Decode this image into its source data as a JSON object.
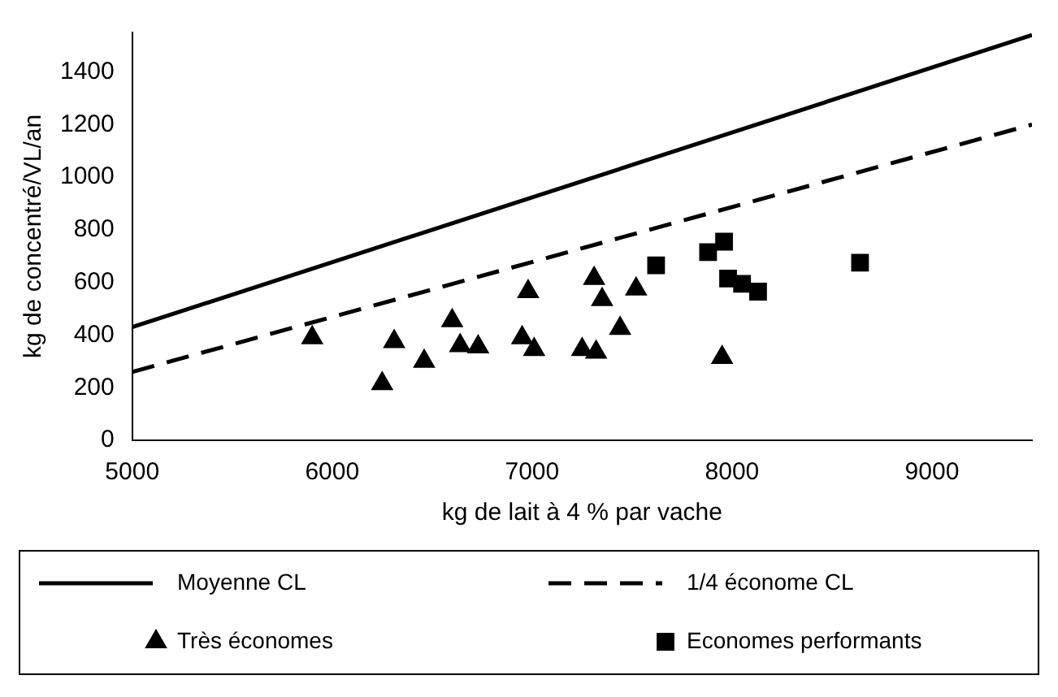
{
  "chart_data": {
    "type": "scatter",
    "xlabel": "kg de lait à 4 % par vache",
    "ylabel": "kg de concentré/VL/an",
    "xlim": [
      5000,
      9500
    ],
    "xticks": [
      5000,
      6000,
      7000,
      8000,
      9000
    ],
    "ylim": [
      0,
      1550
    ],
    "yticks": [
      0,
      200,
      400,
      600,
      800,
      1000,
      1200,
      1400
    ],
    "grid": false,
    "legend": "bottom",
    "series": [
      {
        "name": "Moyenne CL",
        "type": "line",
        "color": "#000000",
        "line_style": "solid",
        "marker": "none",
        "x": [
          5000,
          9500
        ],
        "values": [
          430,
          1540
        ]
      },
      {
        "name": "1/4 économe CL",
        "type": "line",
        "color": "#000000",
        "line_style": "dashed",
        "marker": "none",
        "x": [
          5000,
          9500
        ],
        "values": [
          260,
          1200
        ]
      },
      {
        "name": "Très économes",
        "color": "#000000",
        "marker": "triangle",
        "x": [
          5900,
          6250,
          6310,
          6460,
          6600,
          6640,
          6730,
          6980,
          6950,
          7010,
          7250,
          7310,
          7320,
          7350,
          7440,
          7520,
          7950
        ],
        "values": [
          390,
          215,
          375,
          300,
          455,
          360,
          355,
          565,
          390,
          345,
          345,
          615,
          335,
          535,
          425,
          575,
          315
        ]
      },
      {
        "name": "Economes performants",
        "color": "#000000",
        "marker": "square",
        "x": [
          7620,
          7880,
          7960,
          7980,
          8050,
          8130,
          8640
        ],
        "values": [
          665,
          715,
          755,
          615,
          595,
          565,
          675
        ]
      }
    ]
  }
}
